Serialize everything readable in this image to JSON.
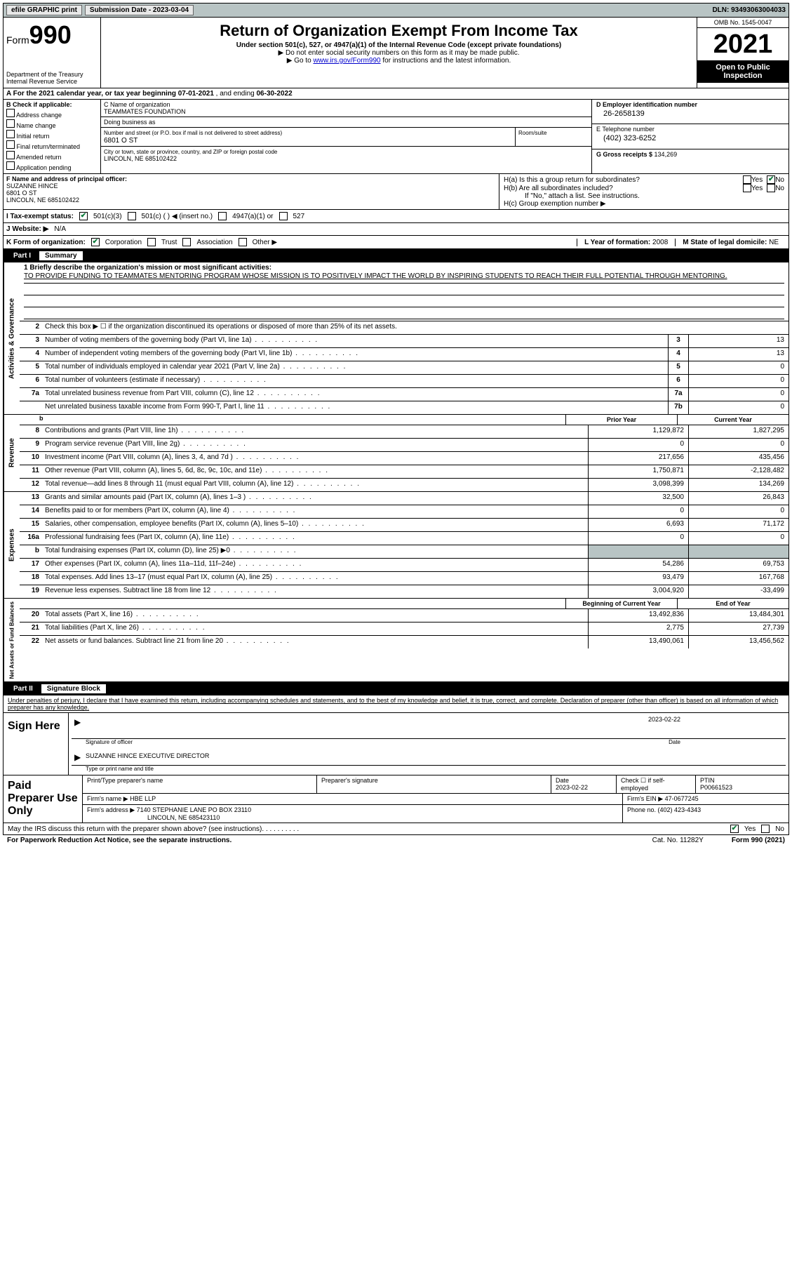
{
  "topbar": {
    "efile": "efile GRAPHIC print",
    "submission_label": "Submission Date - ",
    "submission_date": "2023-03-04",
    "dln_label": "DLN: ",
    "dln": "93493063004033"
  },
  "header": {
    "form_word": "Form",
    "form_num": "990",
    "dept": "Department of the Treasury Internal Revenue Service",
    "title": "Return of Organization Exempt From Income Tax",
    "sub": "Under section 501(c), 527, or 4947(a)(1) of the Internal Revenue Code (except private foundations)",
    "note1": "▶ Do not enter social security numbers on this form as it may be made public.",
    "note2_pre": "▶ Go to ",
    "note2_link": "www.irs.gov/Form990",
    "note2_post": " for instructions and the latest information.",
    "omb": "OMB No. 1545-0047",
    "year": "2021",
    "open": "Open to Public Inspection"
  },
  "row_a": {
    "text_pre": "A For the 2021 calendar year, or tax year beginning ",
    "begin": "07-01-2021",
    "mid": "  , and ending ",
    "end": "06-30-2022"
  },
  "col_b": {
    "label": "B Check if applicable:",
    "addr": "Address change",
    "name": "Name change",
    "init": "Initial return",
    "final": "Final return/terminated",
    "amend": "Amended return",
    "app": "Application pending"
  },
  "col_c": {
    "name_label": "C Name of organization",
    "name": "TEAMMATES FOUNDATION",
    "dba_label": "Doing business as",
    "dba": "",
    "street_label": "Number and street (or P.O. box if mail is not delivered to street address)",
    "street": "6801 O ST",
    "suite_label": "Room/suite",
    "suite": "",
    "city_label": "City or town, state or province, country, and ZIP or foreign postal code",
    "city": "LINCOLN, NE  685102422"
  },
  "col_d": {
    "ein_label": "D Employer identification number",
    "ein": "26-2658139",
    "phone_label": "E Telephone number",
    "phone": "(402) 323-6252",
    "gross_label": "G Gross receipts $ ",
    "gross": "134,269"
  },
  "f": {
    "label": "F Name and address of principal officer:",
    "l1": "SUZANNE HINCE",
    "l2": "6801 O ST",
    "l3": "LINCOLN, NE  685102422"
  },
  "h": {
    "ha": "H(a)  Is this a group return for subordinates?",
    "hb": "H(b)  Are all subordinates included?",
    "hb_note": "If \"No,\" attach a list. See instructions.",
    "hc": "H(c)  Group exemption number ▶",
    "yes": "Yes",
    "no": "No"
  },
  "i": {
    "label": "I  Tax-exempt status:",
    "o1": "501(c)(3)",
    "o2": "501(c) (  ) ◀ (insert no.)",
    "o3": "4947(a)(1) or",
    "o4": "527"
  },
  "j": {
    "label": "J  Website: ▶",
    "val": "N/A"
  },
  "k": {
    "label": "K Form of organization:",
    "corp": "Corporation",
    "trust": "Trust",
    "assoc": "Association",
    "other": "Other ▶",
    "l_label": "L Year of formation: ",
    "l_val": "2008",
    "m_label": "M State of legal domicile: ",
    "m_val": "NE"
  },
  "parts": {
    "p1": "Part I",
    "p1_title": "Summary",
    "p2": "Part II",
    "p2_title": "Signature Block"
  },
  "summary": {
    "q1_label": "1  Briefly describe the organization's mission or most significant activities:",
    "q1_text": "TO PROVIDE FUNDING TO TEAMMATES MENTORING PROGRAM WHOSE MISSION IS TO POSITIVELY IMPACT THE WORLD BY INSPIRING STUDENTS TO REACH THEIR FULL POTENTIAL THROUGH MENTORING.",
    "q2": "Check this box ▶ ☐ if the organization discontinued its operations or disposed of more than 25% of its net assets.",
    "vlab_gov": "Activities & Governance",
    "vlab_rev": "Revenue",
    "vlab_exp": "Expenses",
    "vlab_net": "Net Assets or Fund Balances",
    "col_prior": "Prior Year",
    "col_curr": "Current Year",
    "col_beg": "Beginning of Current Year",
    "col_end": "End of Year",
    "lines_gov": [
      {
        "n": "3",
        "d": "Number of voting members of the governing body (Part VI, line 1a)",
        "box": "3",
        "v": "13"
      },
      {
        "n": "4",
        "d": "Number of independent voting members of the governing body (Part VI, line 1b)",
        "box": "4",
        "v": "13"
      },
      {
        "n": "5",
        "d": "Total number of individuals employed in calendar year 2021 (Part V, line 2a)",
        "box": "5",
        "v": "0"
      },
      {
        "n": "6",
        "d": "Total number of volunteers (estimate if necessary)",
        "box": "6",
        "v": "0"
      },
      {
        "n": "7a",
        "d": "Total unrelated business revenue from Part VIII, column (C), line 12",
        "box": "7a",
        "v": "0"
      },
      {
        "n": "",
        "d": "Net unrelated business taxable income from Form 990-T, Part I, line 11",
        "box": "7b",
        "v": "0"
      }
    ],
    "lines_rev": [
      {
        "n": "8",
        "d": "Contributions and grants (Part VIII, line 1h)",
        "py": "1,129,872",
        "cy": "1,827,295"
      },
      {
        "n": "9",
        "d": "Program service revenue (Part VIII, line 2g)",
        "py": "0",
        "cy": "0"
      },
      {
        "n": "10",
        "d": "Investment income (Part VIII, column (A), lines 3, 4, and 7d )",
        "py": "217,656",
        "cy": "435,456"
      },
      {
        "n": "11",
        "d": "Other revenue (Part VIII, column (A), lines 5, 6d, 8c, 9c, 10c, and 11e)",
        "py": "1,750,871",
        "cy": "-2,128,482"
      },
      {
        "n": "12",
        "d": "Total revenue—add lines 8 through 11 (must equal Part VIII, column (A), line 12)",
        "py": "3,098,399",
        "cy": "134,269"
      }
    ],
    "lines_exp": [
      {
        "n": "13",
        "d": "Grants and similar amounts paid (Part IX, column (A), lines 1–3 )",
        "py": "32,500",
        "cy": "26,843"
      },
      {
        "n": "14",
        "d": "Benefits paid to or for members (Part IX, column (A), line 4)",
        "py": "0",
        "cy": "0"
      },
      {
        "n": "15",
        "d": "Salaries, other compensation, employee benefits (Part IX, column (A), lines 5–10)",
        "py": "6,693",
        "cy": "71,172"
      },
      {
        "n": "16a",
        "d": "Professional fundraising fees (Part IX, column (A), line 11e)",
        "py": "0",
        "cy": "0"
      },
      {
        "n": "b",
        "d": "Total fundraising expenses (Part IX, column (D), line 25) ▶0",
        "py": "",
        "cy": "",
        "grey": true
      },
      {
        "n": "17",
        "d": "Other expenses (Part IX, column (A), lines 11a–11d, 11f–24e)",
        "py": "54,286",
        "cy": "69,753"
      },
      {
        "n": "18",
        "d": "Total expenses. Add lines 13–17 (must equal Part IX, column (A), line 25)",
        "py": "93,479",
        "cy": "167,768"
      },
      {
        "n": "19",
        "d": "Revenue less expenses. Subtract line 18 from line 12",
        "py": "3,004,920",
        "cy": "-33,499"
      }
    ],
    "lines_net": [
      {
        "n": "20",
        "d": "Total assets (Part X, line 16)",
        "py": "13,492,836",
        "cy": "13,484,301"
      },
      {
        "n": "21",
        "d": "Total liabilities (Part X, line 26)",
        "py": "2,775",
        "cy": "27,739"
      },
      {
        "n": "22",
        "d": "Net assets or fund balances. Subtract line 21 from line 20",
        "py": "13,490,061",
        "cy": "13,456,562"
      }
    ]
  },
  "sig": {
    "penalty": "Under penalties of perjury, I declare that I have examined this return, including accompanying schedules and statements, and to the best of my knowledge and belief, it is true, correct, and complete. Declaration of preparer (other than officer) is based on all information of which preparer has any knowledge.",
    "sign_here": "Sign Here",
    "sig_officer": "Signature of officer",
    "sig_date": "2023-02-22",
    "date_label": "Date",
    "name_title": "SUZANNE HINCE  EXECUTIVE DIRECTOR",
    "name_title_label": "Type or print name and title"
  },
  "prep": {
    "label": "Paid Preparer Use Only",
    "h1": "Print/Type preparer's name",
    "h2": "Preparer's signature",
    "h3_label": "Date",
    "h3": "2023-02-22",
    "h4_label": "Check ☐ if self-employed",
    "h5_label": "PTIN",
    "h5": "P00661523",
    "firm_label": "Firm's name    ▶ ",
    "firm": "HBE LLP",
    "ein_label": "Firm's EIN ▶ ",
    "ein": "47-0677245",
    "addr_label": "Firm's address ▶ ",
    "addr1": "7140 STEPHANIE LANE PO BOX 23110",
    "addr2": "LINCOLN, NE  685423110",
    "phone_label": "Phone no. ",
    "phone": "(402) 423-4343"
  },
  "footer": {
    "discuss": "May the IRS discuss this return with the preparer shown above? (see instructions)",
    "yes": "Yes",
    "no": "No",
    "paperwork": "For Paperwork Reduction Act Notice, see the separate instructions.",
    "cat": "Cat. No. 11282Y",
    "form": "Form 990 (2021)"
  }
}
